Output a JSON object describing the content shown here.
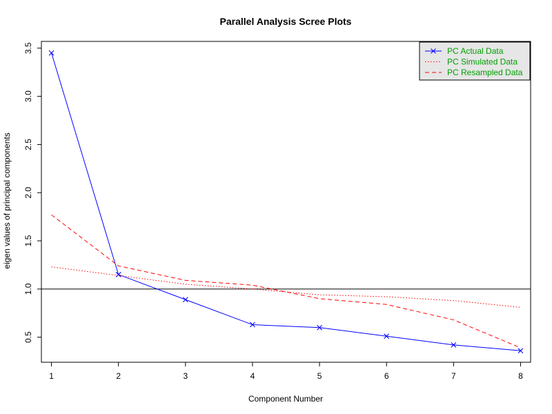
{
  "chart_data": {
    "type": "line",
    "title": "Parallel Analysis Scree Plots",
    "xlabel": "Component Number",
    "ylabel": "eigen values of principal components",
    "x": [
      1,
      2,
      3,
      4,
      5,
      6,
      7,
      8
    ],
    "xlim": [
      0.85,
      8.15
    ],
    "ylim": [
      0.24,
      3.57
    ],
    "xticks": [
      1,
      2,
      3,
      4,
      5,
      6,
      7,
      8
    ],
    "yticks": [
      0.5,
      1.0,
      1.5,
      2.0,
      2.5,
      3.0,
      3.5
    ],
    "ytick_labels": [
      "0.5",
      "1.0",
      "1.5",
      "2.0",
      "2.5",
      "3.0",
      "3.5"
    ],
    "reference_line": 1.0,
    "legend_position": "top-right",
    "legend_text_color": "#00a000",
    "legend_bg": "#e6e6e6",
    "series": [
      {
        "name": "PC  Actual Data",
        "color": "#0000ff",
        "style": "solid",
        "marker": "x",
        "values": [
          3.45,
          1.15,
          0.89,
          0.63,
          0.6,
          0.51,
          0.42,
          0.36
        ]
      },
      {
        "name": "PC  Simulated Data",
        "color": "#ff0000",
        "style": "dotted",
        "marker": "none",
        "values": [
          1.23,
          1.14,
          1.05,
          1.0,
          0.94,
          0.92,
          0.88,
          0.81
        ]
      },
      {
        "name": "PC  Resampled Data",
        "color": "#ff0000",
        "style": "dashed",
        "marker": "none",
        "values": [
          1.77,
          1.24,
          1.09,
          1.04,
          0.9,
          0.84,
          0.68,
          0.39
        ]
      }
    ]
  }
}
